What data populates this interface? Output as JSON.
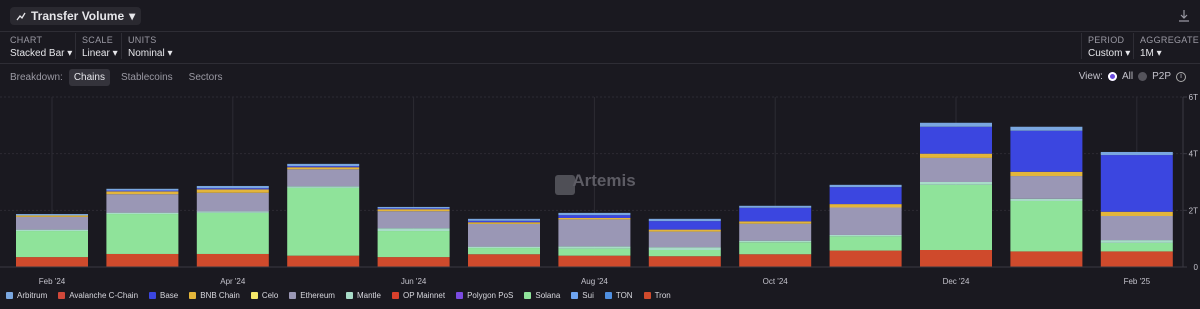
{
  "ui": {
    "title": "Transfer Volume",
    "controls": [
      {
        "label": "CHART",
        "value": "Stacked Bar"
      },
      {
        "label": "SCALE",
        "value": "Linear"
      },
      {
        "label": "UNITS",
        "value": "Nominal"
      }
    ],
    "right_controls": [
      {
        "label": "PERIOD",
        "value": "Custom"
      },
      {
        "label": "AGGREGATE",
        "value": "1M"
      }
    ],
    "breakdown_label": "Breakdown:",
    "breakdown_tabs": [
      "Chains",
      "Stablecoins",
      "Sectors"
    ],
    "view_label": "View:",
    "view_options": [
      "All",
      "P2P"
    ],
    "watermark": "Artemis"
  },
  "chart_data": {
    "type": "stacked-bar",
    "categories": [
      "Feb '24",
      null,
      "Apr '24",
      null,
      "Jun '24",
      null,
      "Aug '24",
      null,
      "Oct '24",
      null,
      "Dec '24",
      null,
      "Feb '25"
    ],
    "ylim": [
      0,
      6
    ],
    "yticks": [
      0,
      {
        "value": 2,
        "label": "2T"
      },
      {
        "value": 4,
        "label": "4T"
      },
      {
        "value": 6,
        "label": "6T"
      }
    ],
    "grid": true,
    "series": [
      {
        "name": "Arbitrum",
        "color": "#7aa7e0",
        "values": [
          0.05,
          0.06,
          0.08,
          0.08,
          0.05,
          0.07,
          0.08,
          0.08,
          0.07,
          0.08,
          0.14,
          0.14,
          0.11
        ]
      },
      {
        "name": "Avalanche C-Chain",
        "color": "#d0483a",
        "values": [
          0,
          0,
          0,
          0,
          0,
          0,
          0,
          0,
          0,
          0,
          0,
          0,
          0
        ]
      },
      {
        "name": "Base",
        "color": "#3b46e0",
        "values": [
          0,
          0.03,
          0.04,
          0.04,
          0.03,
          0.05,
          0.1,
          0.3,
          0.48,
          0.6,
          0.95,
          1.45,
          2.0
        ]
      },
      {
        "name": "BNB Chain",
        "color": "#e3b53a",
        "values": [
          0.05,
          0.1,
          0.12,
          0.07,
          0.07,
          0.06,
          0.05,
          0.07,
          0.08,
          0.12,
          0.15,
          0.15,
          0.15
        ]
      },
      {
        "name": "Celo",
        "color": "#f5e86a",
        "values": [
          0,
          0,
          0,
          0,
          0,
          0,
          0,
          0,
          0,
          0,
          0,
          0,
          0
        ]
      },
      {
        "name": "Ethereum",
        "color": "#9a97b5",
        "values": [
          0.45,
          0.65,
          0.66,
          0.6,
          0.6,
          0.8,
          0.95,
          0.55,
          0.6,
          0.97,
          0.85,
          0.8,
          0.85
        ]
      },
      {
        "name": "Mantle",
        "color": "#a8dcc8",
        "values": [
          0.05,
          0.05,
          0.05,
          0.06,
          0.1,
          0.05,
          0.08,
          0.1,
          0.06,
          0.05,
          0.1,
          0.08,
          0.1
        ]
      },
      {
        "name": "OP Mainnet",
        "color": "#d8402c",
        "values": [
          0,
          0,
          0,
          0,
          0,
          0,
          0,
          0,
          0,
          0,
          0,
          0,
          0
        ]
      },
      {
        "name": "Polygon PoS",
        "color": "#7b4be0",
        "values": [
          0,
          0,
          0,
          0,
          0,
          0,
          0,
          0,
          0,
          0,
          0,
          0,
          0
        ]
      },
      {
        "name": "Solana",
        "color": "#8fe39a",
        "values": [
          0.92,
          1.41,
          1.45,
          2.39,
          0.92,
          0.22,
          0.25,
          0.22,
          0.42,
          0.5,
          2.3,
          1.78,
          0.3
        ]
      },
      {
        "name": "Sui",
        "color": "#6ea4f0",
        "values": [
          0,
          0,
          0,
          0,
          0,
          0,
          0,
          0,
          0,
          0,
          0,
          0,
          0
        ]
      },
      {
        "name": "TON",
        "color": "#4f8fe0",
        "values": [
          0,
          0,
          0,
          0,
          0,
          0,
          0,
          0,
          0,
          0,
          0,
          0,
          0
        ]
      },
      {
        "name": "Tron",
        "color": "#cf4a2c",
        "values": [
          0.35,
          0.46,
          0.46,
          0.4,
          0.35,
          0.45,
          0.4,
          0.38,
          0.45,
          0.58,
          0.6,
          0.55,
          0.55
        ]
      }
    ]
  }
}
